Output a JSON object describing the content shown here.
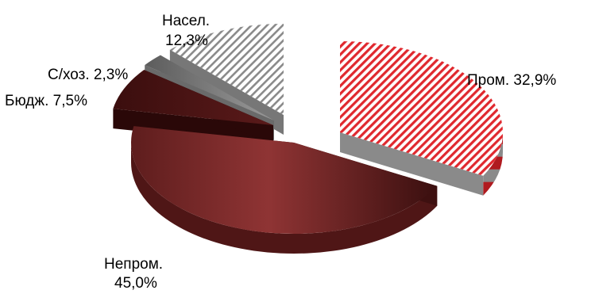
{
  "chart_data": {
    "type": "pie",
    "labels": [
      "Пром.",
      "Непром.",
      "Бюдж.",
      "С/хоз.",
      "Насел."
    ],
    "values": [
      32.9,
      45.0,
      7.5,
      2.3,
      12.3
    ],
    "label_texts": [
      "Пром. 32,9%",
      "Непром.",
      "45,0%",
      "Бюдж. 7,5%",
      "С/хоз. 2,3%",
      "Насел.",
      "12,3%"
    ],
    "colors": {
      "prom": "#e0282e",
      "neprom": "#8b3232",
      "budzh": "#4a1414",
      "skhoz": "#7a7a7a",
      "nasel": "#9a9a9a"
    }
  }
}
